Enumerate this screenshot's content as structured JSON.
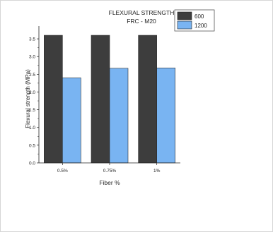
{
  "chart_data": {
    "type": "bar",
    "title": "FLEXURAL STRENGTH",
    "subtitle": "FRC - M20",
    "xlabel": "Fiber %",
    "ylabel": "Flexural strength (MPa)",
    "categories": [
      "0.5%",
      "0.75%",
      "1%"
    ],
    "series": [
      {
        "name": "600",
        "values": [
          3.6,
          3.6,
          3.6
        ]
      },
      {
        "name": "1200",
        "values": [
          2.4,
          2.67,
          2.68
        ]
      }
    ],
    "ylim": [
      0,
      3.8
    ],
    "yticks": [
      "0.0",
      "0.5",
      "1.0",
      "1.5",
      "2.0",
      "2.5",
      "3.0",
      "3.5"
    ],
    "grid": false,
    "legend_position": "top-right",
    "colors": {
      "600": "#3d3d3d",
      "1200": "#79b4f2"
    }
  }
}
